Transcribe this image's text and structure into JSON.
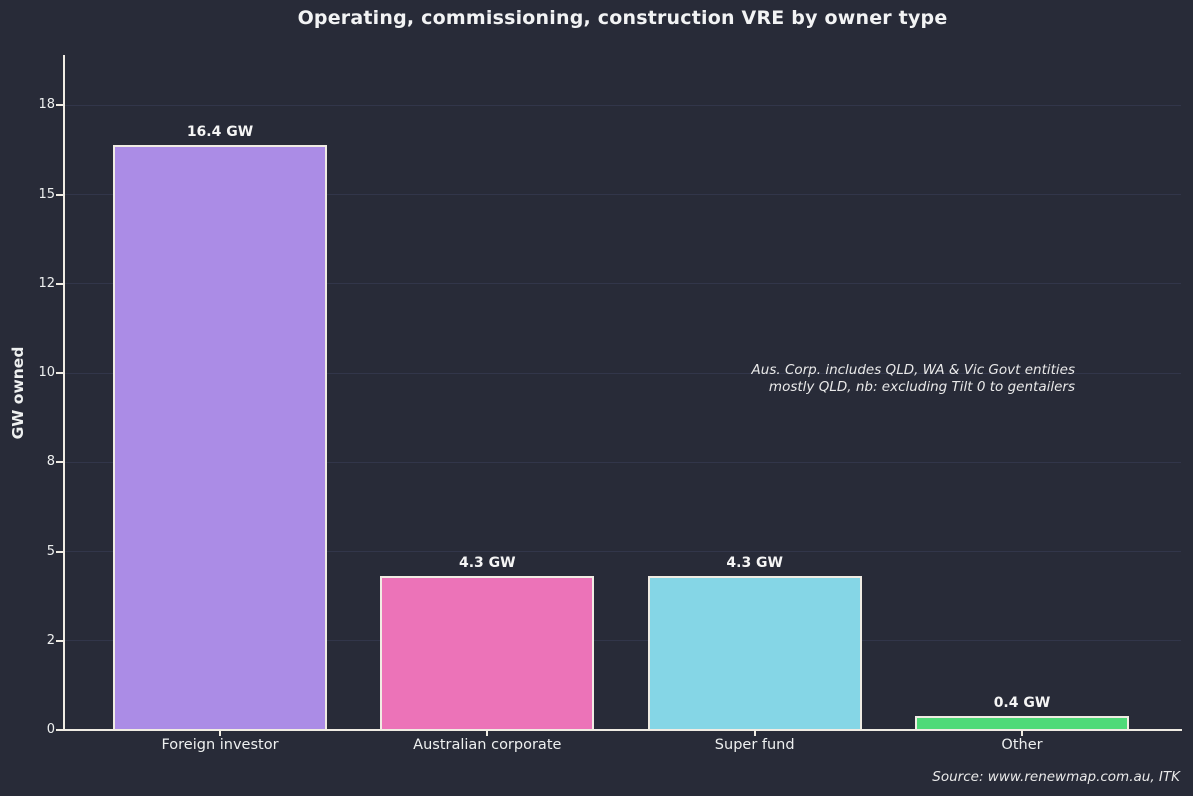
{
  "chart_data": {
    "type": "bar",
    "title": "Operating, commissioning, construction VRE by owner type",
    "xlabel": "",
    "ylabel": "GW owned",
    "categories": [
      "Foreign investor",
      "Australian corporate",
      "Super fund",
      "Other"
    ],
    "values": [
      16.4,
      4.3,
      4.3,
      0.4
    ],
    "bar_labels": [
      "16.4 GW",
      "4.3 GW",
      "4.3 GW",
      "0.4 GW"
    ],
    "bar_colors": [
      "#ab8ce6",
      "#ec73b8",
      "#85d6e6",
      "#4fda78"
    ],
    "ylim": [
      0,
      18.9
    ],
    "yticks": [
      {
        "label": "0",
        "value": 0
      },
      {
        "label": "2",
        "value": 2.5
      },
      {
        "label": "5",
        "value": 5
      },
      {
        "label": "8",
        "value": 7.5
      },
      {
        "label": "10",
        "value": 10
      },
      {
        "label": "12",
        "value": 12.5
      },
      {
        "label": "15",
        "value": 15
      },
      {
        "label": "18",
        "value": 17.5
      }
    ],
    "grid": "horizontal gridlines on, vertical off",
    "legend_position": "none",
    "annotation_lines": [
      "Aus. Corp. includes QLD, WA & Vic Govt entities",
      "mostly QLD, nb: excluding Tilt 0 to gentailers"
    ],
    "source_note": "Source: www.renewmap.com.au, ITK",
    "colors": {
      "background": "#282b38",
      "text": "#eef0f0",
      "gridline": "#32364a",
      "spine": "#f0ece3",
      "bar_edge": "#f0ece3"
    }
  }
}
